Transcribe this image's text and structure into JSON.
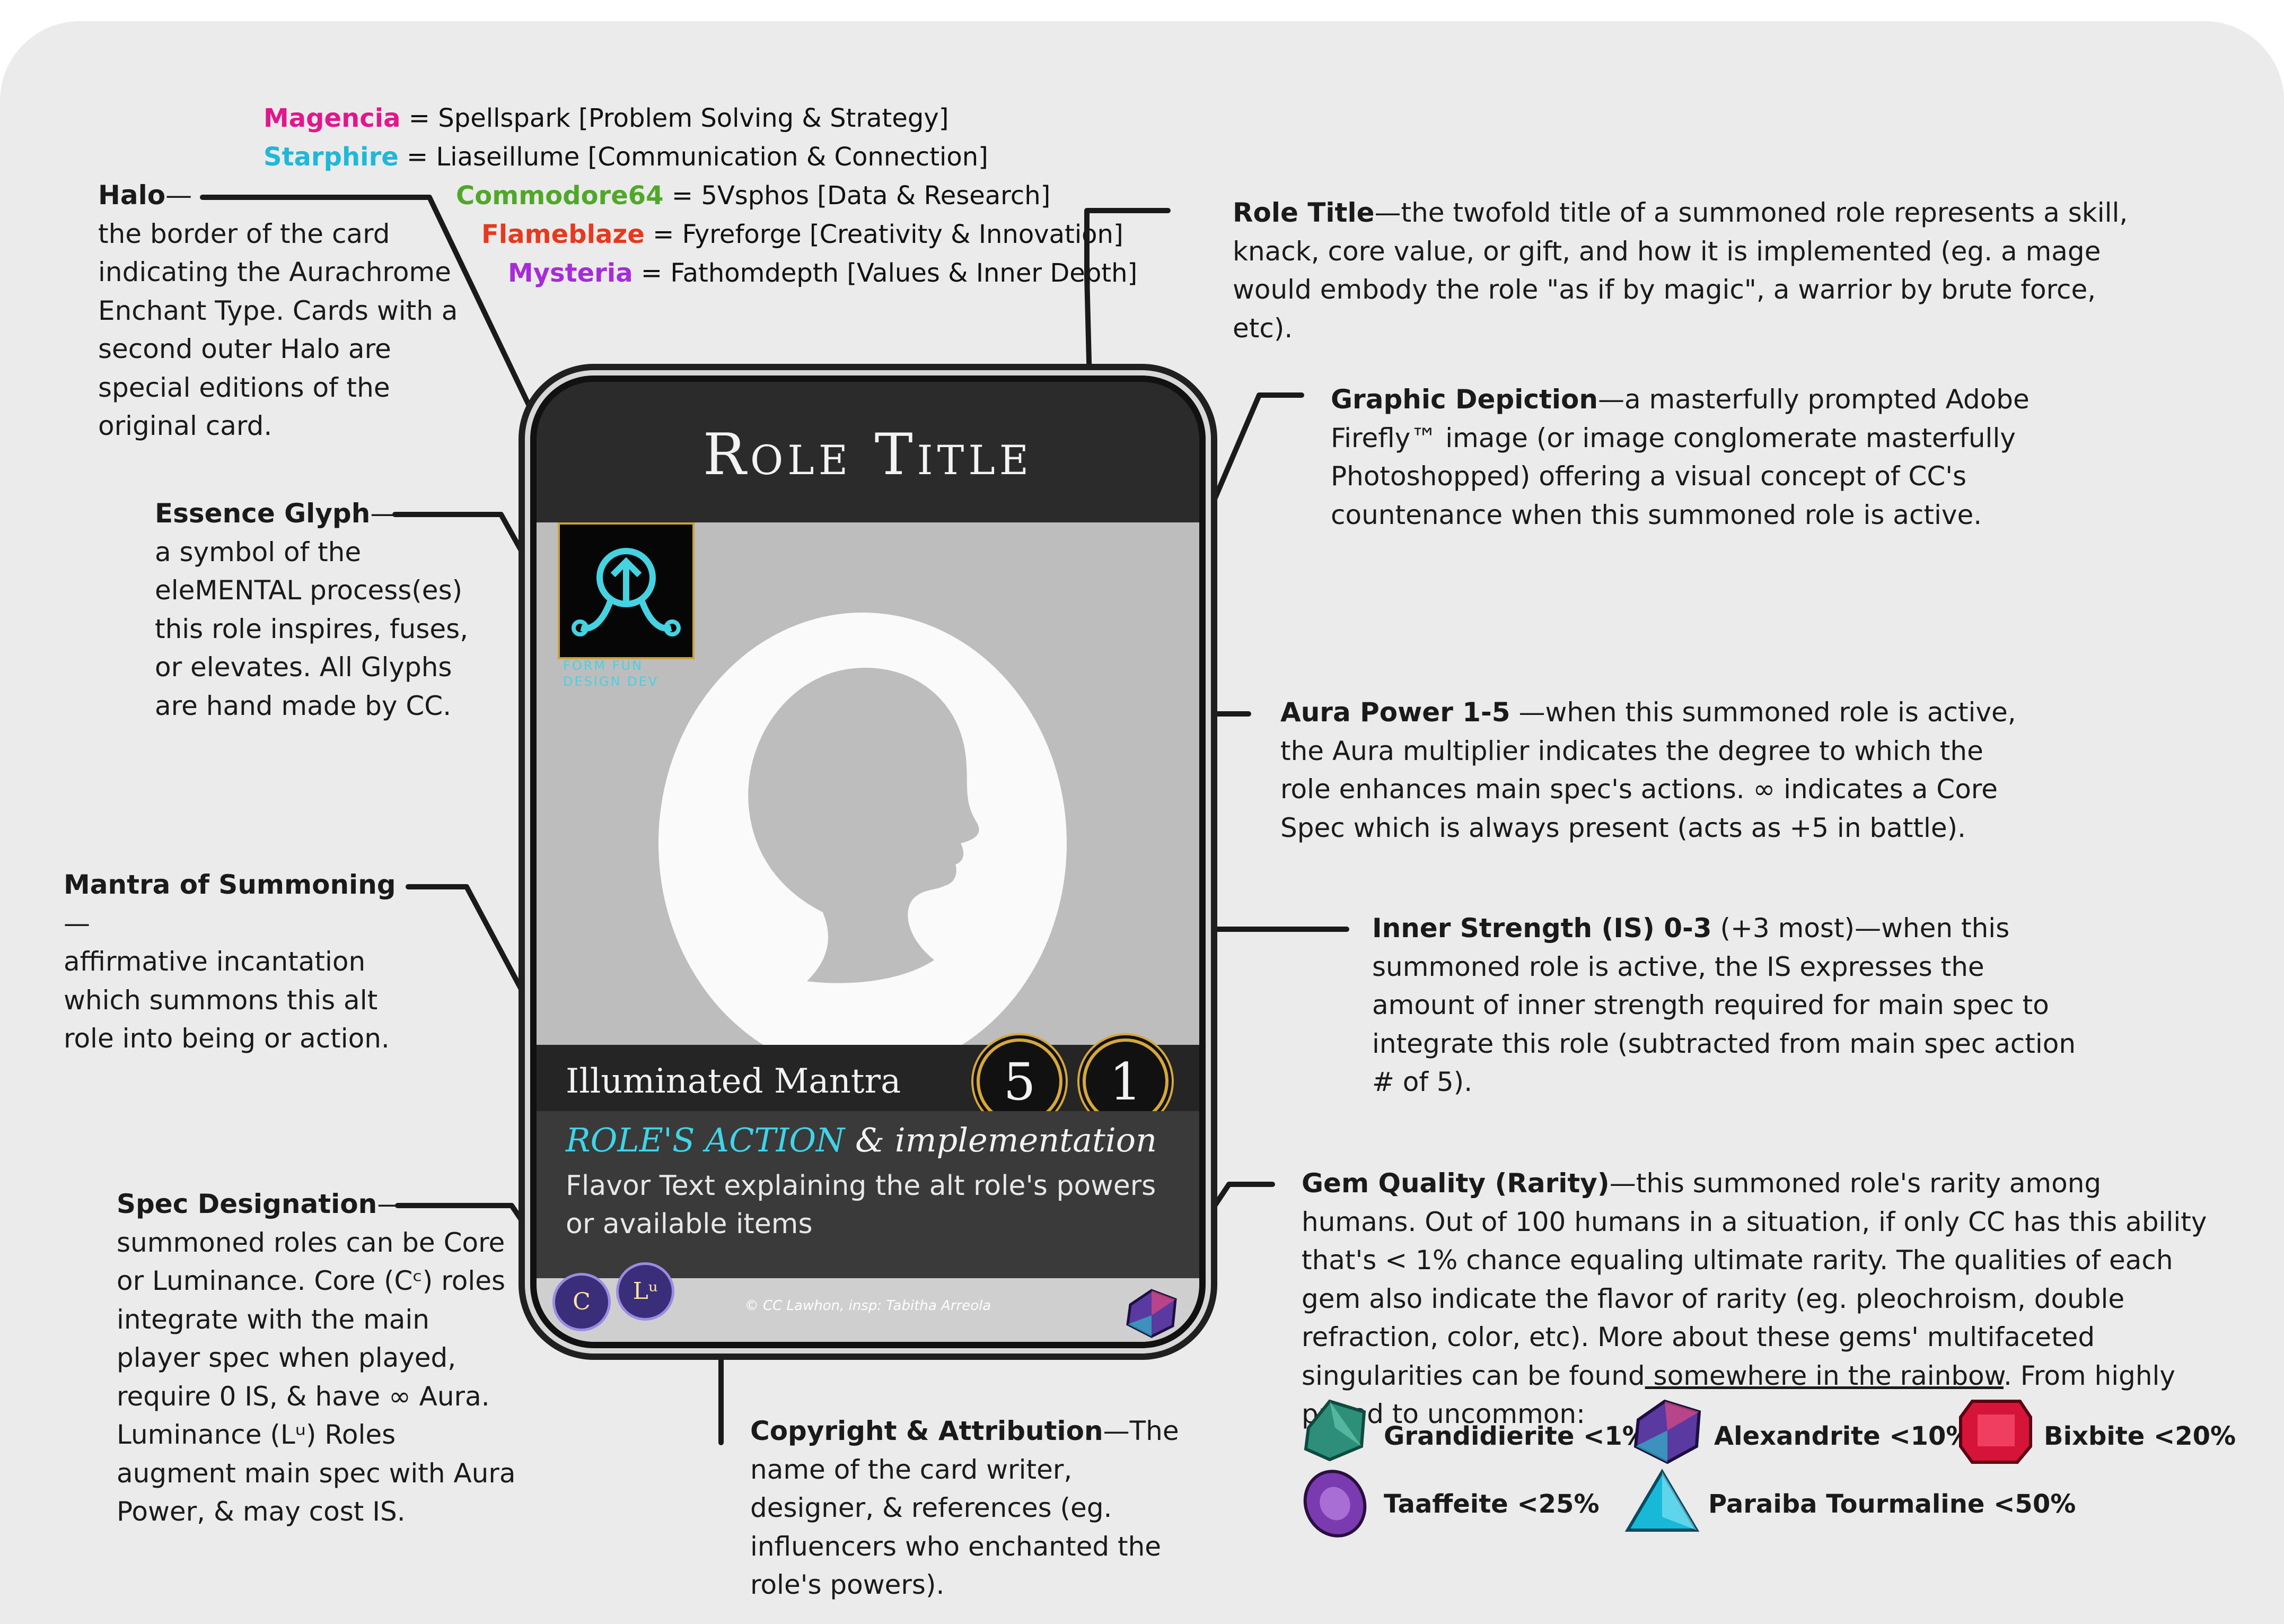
{
  "legend": [
    {
      "name": "Magencia",
      "rest": " = Spellspark [Problem Solving & Strategy]",
      "color": "#e0188c"
    },
    {
      "name": "Starphire",
      "rest": " = Liaseillume [Communication & Connection]",
      "color": "#1fb8d8"
    },
    {
      "name": "Commodore64",
      "rest": " = 5Vsphos [Data & Research]",
      "color": "#4fa827"
    },
    {
      "name": "Flameblaze",
      "rest": " = Fyreforge [Creativity & Innovation]",
      "color": "#e53a1f"
    },
    {
      "name": "Mysteria",
      "rest": " = Fathomdepth [Values & Inner Depth]",
      "color": "#a62bd9"
    }
  ],
  "annotations": {
    "halo": {
      "title": "Halo",
      "dash": "—",
      "body": "the border of the card indicating the Aurachrome Enchant Type. Cards with a second outer Halo are special editions of the original card."
    },
    "glyph": {
      "title": "Essence Glyph",
      "dash": "—",
      "body": "a symbol of the eleMENTAL process(es) this role inspires, fuses, or elevates. All Glyphs are hand made by CC."
    },
    "mantra": {
      "title": "Mantra of Summoning",
      "dash": "—",
      "body": "affirmative incantation which summons this alt role into being or action."
    },
    "spec": {
      "title": "Spec Designation",
      "dash": "—",
      "body": "summoned roles can be Core or Luminance. Core (Cᶜ) roles integrate with the main player spec when played, require 0 IS, & have ∞ Aura. Luminance (Lᵘ) Roles augment main spec with Aura Power, & may cost IS."
    },
    "role_title": {
      "title": "Role Title",
      "dash": "—",
      "body": "the twofold title of a summoned role represents a skill, knack, core value, or gift, and how it is implemented (eg. a mage would embody the role \"as if by magic\", a warrior by brute force, etc)."
    },
    "graphic": {
      "title": "Graphic Depiction",
      "dash": "—",
      "body": "a masterfully prompted Adobe Firefly™ image (or image conglomerate masterfully Photoshopped) offering a visual concept of CC's countenance when this summoned role is active."
    },
    "aura": {
      "title": "Aura Power 1-5",
      "dash": " —",
      "body": "when this summoned role is active, the Aura multiplier indicates the degree to which the role enhances main spec's actions. ∞ indicates a Core Spec which is always present (acts as +5 in battle)."
    },
    "inner": {
      "title": "Inner Strength (IS) 0-3",
      "dash": " (+3 most)—",
      "body": "when this summoned role is active, the IS expresses the amount of inner strength required for main spec to integrate this role (subtracted from main spec action # of 5)."
    },
    "gem": {
      "title": "Gem Quality (Rarity)",
      "dash": "—",
      "body": "this summoned role's rarity among humans. Out of 100 humans in a situation, if only CC has this ability that's < 1% chance equaling ultimate rarity. The qualities of each gem also indicate the flavor of rarity (eg. pleochroism, double refraction, color, etc). More about these gems' multifaceted singularities can be found",
      "link": " somewhere in the rainbow",
      "tail": ". From highly prized to uncommon:"
    },
    "copyright": {
      "title": "Copyright & Attribution",
      "dash": "—",
      "body": "The name of the card writer, designer, & references (eg. influencers who enchanted the role's powers)."
    }
  },
  "card": {
    "title": "Role Title",
    "mantra": "Illuminated Mantra",
    "action_accent": "ROLE'S ACTION",
    "action_rest": " & implementation",
    "flavor": "Flavor Text explaining the alt role's powers or available items",
    "aura_value": "5",
    "is_value": "1",
    "copyright": "© CC Lawhon, insp: Tabitha Arreola",
    "glyph_labels": "FORM FUN DESIGN DEV",
    "spec_coin_1": "C",
    "spec_coin_2": "Lᵘ"
  },
  "gems": [
    {
      "label": "Grandidierite <1%",
      "color": "#2d8f7a"
    },
    {
      "label": "Alexandrite <10%",
      "color": "#5a3aa0"
    },
    {
      "label": "Bixbite <20%",
      "color": "#d6143a"
    },
    {
      "label": "Taaffeite <25%",
      "color": "#7a3ab0"
    },
    {
      "label": "Paraiba Tourmaline  <50%",
      "color": "#18b8d8"
    }
  ],
  "colors": {
    "panel": "#ebebeb",
    "card_dark": "#2b2b2b",
    "accent_cyan": "#3fd4e8",
    "gold": "#d6a83b"
  }
}
